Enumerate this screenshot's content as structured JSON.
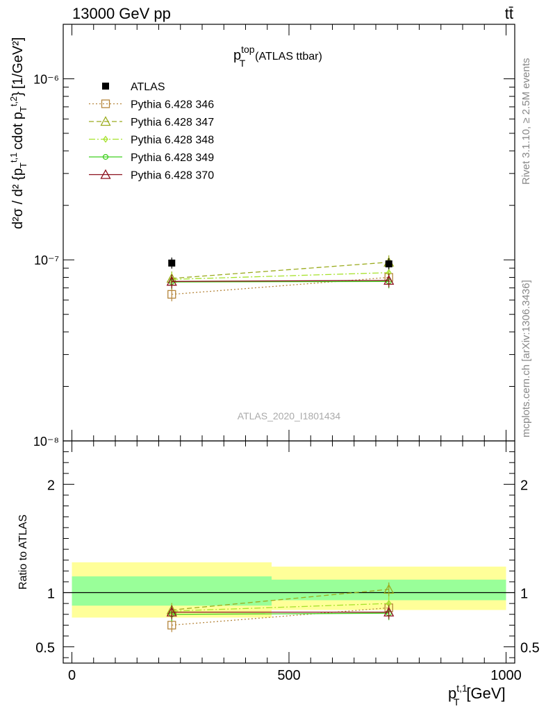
{
  "header": {
    "left": "13000 GeV pp",
    "right": "tt̄"
  },
  "side_labels": {
    "rivet": "Rivet 3.1.10, ≥ 2.5M events",
    "mcplots": "mcplots.cern.ch [arXiv:1306.3436]"
  },
  "watermark": "ATLAS_2020_I1801434",
  "chart_data": {
    "type": "scatter",
    "title": "p_T^top (ATLAS ttbar)",
    "title_parts": {
      "main": "p",
      "sup": "top",
      "sub": "T",
      "rest": "(ATLAS ttbar)"
    },
    "xlabel": "p_T^{t,1} [GeV]",
    "xlabel_parts": {
      "main": "p",
      "sup": "t,1",
      "sub": "T",
      "rest": "[GeV]"
    },
    "ylabel": "d²σ/d²{p_T^{t,1} cdot p_T^{t,2}} [1/GeV²]",
    "ylabel_parts": {
      "prefix": "d²σ / d² {p",
      "mid": "cdot p",
      "unit": "[1/GeV²]"
    },
    "ratio_ylabel": "Ratio to ATLAS",
    "xlim": [
      -20,
      1020
    ],
    "ylim": [
      1e-08,
      2e-06
    ],
    "y_scale": "log",
    "ratio_ylim": [
      0.35,
      2.4
    ],
    "x_ticks": [
      0,
      500,
      1000
    ],
    "y_tick_labels": [
      "10⁻⁸",
      "10⁻⁷",
      "10⁻⁶"
    ],
    "y_tick_values": [
      1e-08,
      1e-07,
      1e-06
    ],
    "ratio_ticks": [
      0.5,
      1,
      2
    ],
    "legend_position": "top-left",
    "data": {
      "name": "ATLAS",
      "x": [
        230,
        730
      ],
      "y": [
        9.6e-08,
        9.5e-08
      ],
      "bins": [
        [
          0,
          460
        ],
        [
          460,
          1000
        ]
      ],
      "band_inner": [
        [
          0.88,
          1.15
        ],
        [
          0.93,
          1.12
        ]
      ],
      "band_outer": [
        [
          0.77,
          1.28
        ],
        [
          0.84,
          1.24
        ]
      ]
    },
    "series": [
      {
        "name": "Pythia 6.428 346",
        "color": "#b5853b",
        "dash": "2,3",
        "marker": "square",
        "values": [
          6.45e-08,
          8e-08
        ],
        "ratio": [
          0.7,
          0.86
        ]
      },
      {
        "name": "Pythia 6.428 347",
        "color": "#9aab1d",
        "dash": "7,4",
        "marker": "triangle",
        "values": [
          7.9e-08,
          9.7e-08
        ],
        "ratio": [
          0.84,
          1.03
        ]
      },
      {
        "name": "Pythia 6.428 348",
        "color": "#a6e22b",
        "dash": "9,3,2,3",
        "marker": "diamond",
        "values": [
          7.8e-08,
          8.5e-08
        ],
        "ratio": [
          0.83,
          0.9
        ]
      },
      {
        "name": "Pythia 6.428 349",
        "color": "#3ecf1d",
        "dash": "",
        "marker": "circle",
        "values": [
          7.55e-08,
          7.6e-08
        ],
        "ratio": [
          0.8,
          0.81
        ]
      },
      {
        "name": "Pythia 6.428 370",
        "color": "#8b0f1c",
        "dash": "",
        "marker": "triangle",
        "values": [
          7.6e-08,
          7.7e-08
        ],
        "ratio": [
          0.82,
          0.82
        ]
      }
    ]
  }
}
